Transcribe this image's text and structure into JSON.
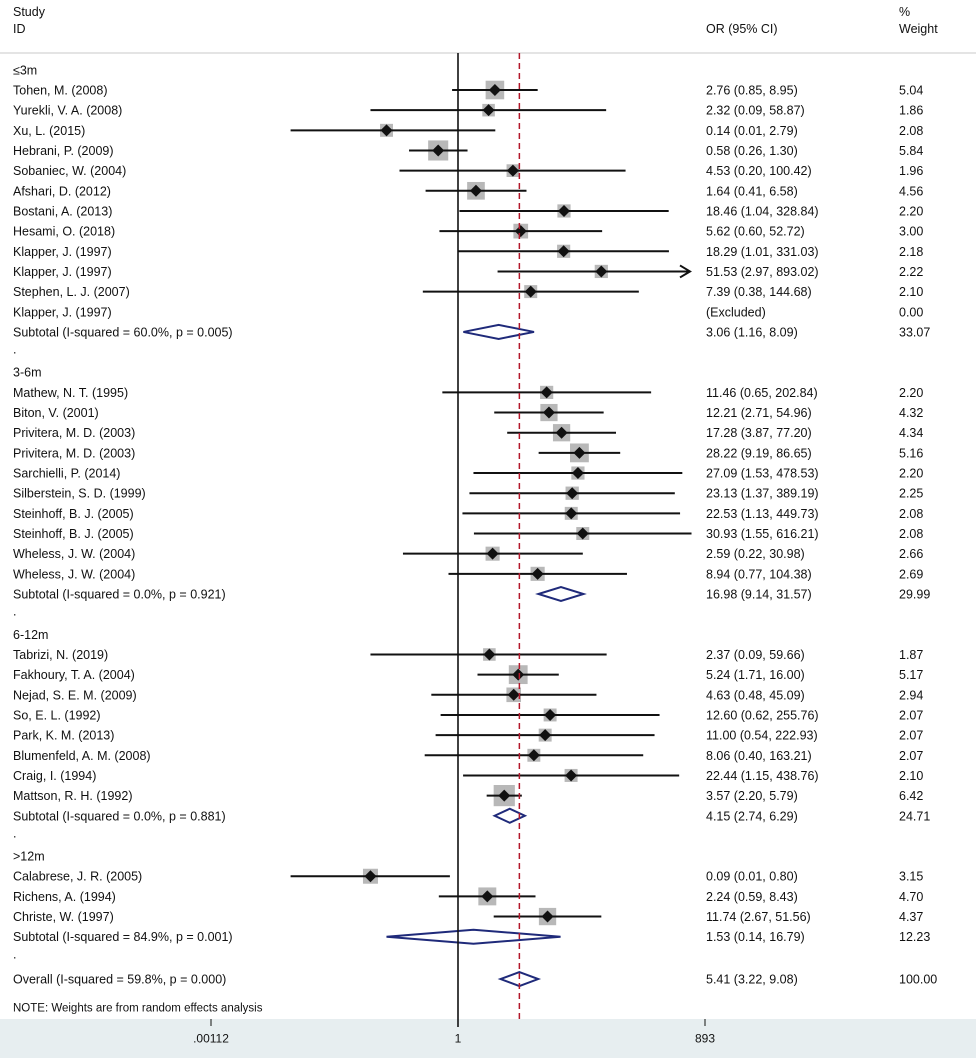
{
  "header": {
    "study_line1": "Study",
    "study_line2": "ID",
    "or_label": "OR (95% CI)",
    "weight_line1": "%",
    "weight_line2": "Weight"
  },
  "note": "NOTE: Weights are from random effects analysis",
  "colors": {
    "text": "#111111",
    "marker": "#111111",
    "weight_box": "#b8b8b8",
    "diamond": "#1f2a7a",
    "ref_line": "#b2182b",
    "axis_band": "#e7eef0"
  },
  "chart_data": {
    "type": "forest",
    "scale": "log",
    "xlim": [
      0.00112,
      893
    ],
    "x_ticks": [
      {
        "value": 0.00112,
        "label": ".00112"
      },
      {
        "value": 1,
        "label": "1"
      },
      {
        "value": 893,
        "label": "893"
      }
    ],
    "null_line": 1,
    "overall_line": 5.41,
    "groups": [
      {
        "label": "≤3m",
        "studies": [
          {
            "study": "Tohen, M. (2008)",
            "or": 2.76,
            "lo": 0.85,
            "hi": 8.95,
            "ci_text": "2.76 (0.85, 8.95)",
            "weight": "5.04"
          },
          {
            "study": "Yurekli, V. A. (2008)",
            "or": 2.32,
            "lo": 0.09,
            "hi": 58.87,
            "ci_text": "2.32 (0.09, 58.87)",
            "weight": "1.86"
          },
          {
            "study": "Xu, L. (2015)",
            "or": 0.14,
            "lo": 0.01,
            "hi": 2.79,
            "ci_text": "0.14 (0.01, 2.79)",
            "weight": "2.08"
          },
          {
            "study": "Hebrani, P. (2009)",
            "or": 0.58,
            "lo": 0.26,
            "hi": 1.3,
            "ci_text": "0.58 (0.26, 1.30)",
            "weight": "5.84"
          },
          {
            "study": "Sobaniec, W. (2004)",
            "or": 4.53,
            "lo": 0.2,
            "hi": 100.42,
            "ci_text": "4.53 (0.20, 100.42)",
            "weight": "1.96"
          },
          {
            "study": "Afshari, D. (2012)",
            "or": 1.64,
            "lo": 0.41,
            "hi": 6.58,
            "ci_text": "1.64 (0.41, 6.58)",
            "weight": "4.56"
          },
          {
            "study": "Bostani, A. (2013)",
            "or": 18.46,
            "lo": 1.04,
            "hi": 328.84,
            "ci_text": "18.46 (1.04, 328.84)",
            "weight": "2.20"
          },
          {
            "study": "Hesami, O. (2018)",
            "or": 5.62,
            "lo": 0.6,
            "hi": 52.72,
            "ci_text": "5.62 (0.60, 52.72)",
            "weight": "3.00"
          },
          {
            "study": "Klapper, J. (1997)",
            "or": 18.29,
            "lo": 1.01,
            "hi": 331.03,
            "ci_text": "18.29 (1.01, 331.03)",
            "weight": "2.18"
          },
          {
            "study": "Klapper, J. (1997)",
            "or": 51.53,
            "lo": 2.97,
            "hi": 893.02,
            "ci_text": "51.53 (2.97, 893.02)",
            "weight": "2.22",
            "arrow": true
          },
          {
            "study": "Stephen, L. J. (2007)",
            "or": 7.39,
            "lo": 0.38,
            "hi": 144.68,
            "ci_text": "7.39 (0.38, 144.68)",
            "weight": "2.10"
          },
          {
            "study": "Klapper, J. (1997)",
            "or": null,
            "lo": null,
            "hi": null,
            "ci_text": "(Excluded)",
            "weight": "0.00"
          }
        ],
        "subtotal": {
          "label": "Subtotal  (I-squared = 60.0%, p = 0.005)",
          "or": 3.06,
          "lo": 1.16,
          "hi": 8.09,
          "ci_text": "3.06 (1.16, 8.09)",
          "weight": "33.07"
        }
      },
      {
        "label": "3-6m",
        "studies": [
          {
            "study": "Mathew, N. T. (1995)",
            "or": 11.46,
            "lo": 0.65,
            "hi": 202.84,
            "ci_text": "11.46 (0.65, 202.84)",
            "weight": "2.20"
          },
          {
            "study": "Biton, V. (2001)",
            "or": 12.21,
            "lo": 2.71,
            "hi": 54.96,
            "ci_text": "12.21 (2.71, 54.96)",
            "weight": "4.32"
          },
          {
            "study": "Privitera, M. D. (2003)",
            "or": 17.28,
            "lo": 3.87,
            "hi": 77.2,
            "ci_text": "17.28 (3.87, 77.20)",
            "weight": "4.34"
          },
          {
            "study": "Privitera, M. D. (2003)",
            "or": 28.22,
            "lo": 9.19,
            "hi": 86.65,
            "ci_text": "28.22 (9.19, 86.65)",
            "weight": "5.16"
          },
          {
            "study": "Sarchielli, P. (2014)",
            "or": 27.09,
            "lo": 1.53,
            "hi": 478.53,
            "ci_text": "27.09 (1.53, 478.53)",
            "weight": "2.20"
          },
          {
            "study": "Silberstein, S. D. (1999)",
            "or": 23.13,
            "lo": 1.37,
            "hi": 389.19,
            "ci_text": "23.13 (1.37, 389.19)",
            "weight": "2.25"
          },
          {
            "study": "Steinhoff, B. J. (2005)",
            "or": 22.53,
            "lo": 1.13,
            "hi": 449.73,
            "ci_text": "22.53 (1.13, 449.73)",
            "weight": "2.08"
          },
          {
            "study": "Steinhoff, B. J. (2005)",
            "or": 30.93,
            "lo": 1.55,
            "hi": 616.21,
            "ci_text": "30.93 (1.55, 616.21)",
            "weight": "2.08"
          },
          {
            "study": "Wheless, J. W. (2004)",
            "or": 2.59,
            "lo": 0.22,
            "hi": 30.98,
            "ci_text": "2.59 (0.22, 30.98)",
            "weight": "2.66"
          },
          {
            "study": "Wheless, J. W. (2004)",
            "or": 8.94,
            "lo": 0.77,
            "hi": 104.38,
            "ci_text": "8.94 (0.77, 104.38)",
            "weight": "2.69"
          }
        ],
        "subtotal": {
          "label": "Subtotal  (I-squared = 0.0%, p = 0.921)",
          "or": 16.98,
          "lo": 9.14,
          "hi": 31.57,
          "ci_text": "16.98 (9.14, 31.57)",
          "weight": "29.99"
        }
      },
      {
        "label": "6-12m",
        "studies": [
          {
            "study": "Tabrizi, N. (2019)",
            "or": 2.37,
            "lo": 0.09,
            "hi": 59.66,
            "ci_text": "2.37 (0.09, 59.66)",
            "weight": "1.87"
          },
          {
            "study": "Fakhoury, T. A. (2004)",
            "or": 5.24,
            "lo": 1.71,
            "hi": 16.0,
            "ci_text": "5.24 (1.71, 16.00)",
            "weight": "5.17"
          },
          {
            "study": "Nejad, S. E. M. (2009)",
            "or": 4.63,
            "lo": 0.48,
            "hi": 45.09,
            "ci_text": "4.63 (0.48, 45.09)",
            "weight": "2.94"
          },
          {
            "study": "So, E. L. (1992)",
            "or": 12.6,
            "lo": 0.62,
            "hi": 255.76,
            "ci_text": "12.60 (0.62, 255.76)",
            "weight": "2.07"
          },
          {
            "study": "Park, K. M. (2013)",
            "or": 11.0,
            "lo": 0.54,
            "hi": 222.93,
            "ci_text": "11.00 (0.54, 222.93)",
            "weight": "2.07"
          },
          {
            "study": "Blumenfeld, A. M. (2008)",
            "or": 8.06,
            "lo": 0.4,
            "hi": 163.21,
            "ci_text": "8.06 (0.40, 163.21)",
            "weight": "2.07"
          },
          {
            "study": "Craig, I. (1994)",
            "or": 22.44,
            "lo": 1.15,
            "hi": 438.76,
            "ci_text": "22.44 (1.15, 438.76)",
            "weight": "2.10"
          },
          {
            "study": "Mattson, R. H. (1992)",
            "or": 3.57,
            "lo": 2.2,
            "hi": 5.79,
            "ci_text": "3.57 (2.20, 5.79)",
            "weight": "6.42"
          }
        ],
        "subtotal": {
          "label": "Subtotal  (I-squared = 0.0%, p = 0.881)",
          "or": 4.15,
          "lo": 2.74,
          "hi": 6.29,
          "ci_text": "4.15 (2.74, 6.29)",
          "weight": "24.71"
        }
      },
      {
        "label": ">12m",
        "studies": [
          {
            "study": "Calabrese, J. R. (2005)",
            "or": 0.09,
            "lo": 0.01,
            "hi": 0.8,
            "ci_text": "0.09 (0.01, 0.80)",
            "weight": "3.15"
          },
          {
            "study": "Richens, A. (1994)",
            "or": 2.24,
            "lo": 0.59,
            "hi": 8.43,
            "ci_text": "2.24 (0.59, 8.43)",
            "weight": "4.70"
          },
          {
            "study": "Christe, W. (1997)",
            "or": 11.74,
            "lo": 2.67,
            "hi": 51.56,
            "ci_text": "11.74 (2.67, 51.56)",
            "weight": "4.37"
          }
        ],
        "subtotal": {
          "label": "Subtotal  (I-squared = 84.9%, p = 0.001)",
          "or": 1.53,
          "lo": 0.14,
          "hi": 16.79,
          "ci_text": "1.53 (0.14, 16.79)",
          "weight": "12.23"
        }
      }
    ],
    "overall": {
      "label": "Overall  (I-squared = 59.8%, p = 0.000)",
      "or": 5.41,
      "lo": 3.22,
      "hi": 9.08,
      "ci_text": "5.41 (3.22, 9.08)",
      "weight": "100.00"
    }
  }
}
